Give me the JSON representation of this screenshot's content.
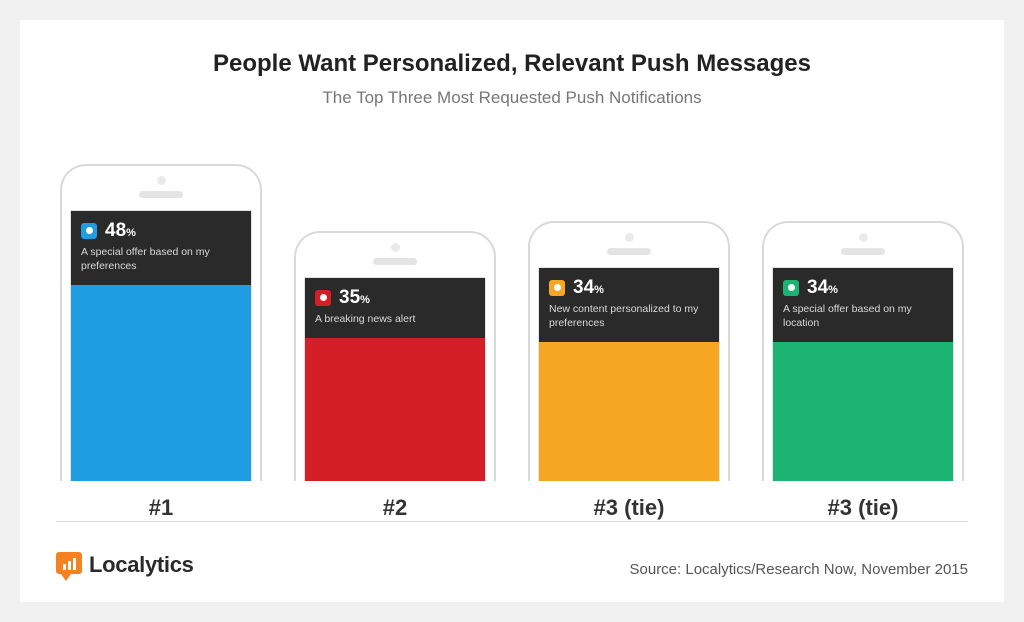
{
  "background_color": "#f1f1f1",
  "card_color": "#ffffff",
  "title": "People Want Personalized, Relevant Push Messages",
  "title_fontsize": 24,
  "title_color": "#222222",
  "subtitle": "The Top Three Most Requested Push Notifications",
  "subtitle_fontsize": 17,
  "subtitle_color": "#777777",
  "phone_border_color": "#d9d9d9",
  "notif_bg": "#2a2a2a",
  "notif_text_color": "#ffffff",
  "notif_desc_color": "#d9d9d9",
  "rank_fontsize": 22,
  "rank_color": "#333333",
  "max_fill_height": 196,
  "items": [
    {
      "rank": "#1",
      "percent": "48",
      "percent_suffix": "%",
      "desc": "A special offer based on my preferences",
      "color": "#1e9de3",
      "fill_height": 196
    },
    {
      "rank": "#2",
      "percent": "35",
      "percent_suffix": "%",
      "desc": "A breaking news alert",
      "color": "#d51f27",
      "fill_height": 143
    },
    {
      "rank": "#3 (tie)",
      "percent": "34",
      "percent_suffix": "%",
      "desc": "New content personalized to my preferences",
      "color": "#f5a623",
      "fill_height": 139
    },
    {
      "rank": "#3 (tie)",
      "percent": "34",
      "percent_suffix": "%",
      "desc": "A special offer based on my location",
      "color": "#1bb571",
      "fill_height": 139
    }
  ],
  "logo": {
    "text": "Localytics",
    "accent": "#f58220"
  },
  "source": "Source: Localytics/Research Now, November 2015",
  "source_fontsize": 15,
  "source_color": "#555555"
}
